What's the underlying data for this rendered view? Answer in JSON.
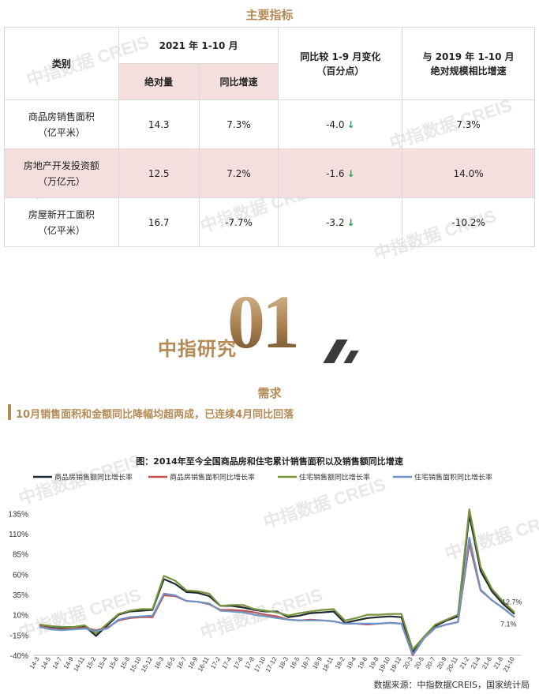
{
  "header": {
    "title": "主要指标"
  },
  "table": {
    "category_header": "类别",
    "period_header": "2021 年 1-10 月",
    "abs_header": "绝对量",
    "yoy_header": "同比增速",
    "change_header_line1": "同比较 1-9 月变化",
    "change_header_line2": "（百分点）",
    "vs2019_header_line1": "与 2019 年 1-10 月",
    "vs2019_header_line2": "绝对规模相比增速",
    "rows": [
      {
        "name_line1": "商品房销售面积",
        "name_line2": "（亿平米）",
        "abs": "14.3",
        "yoy": "7.3%",
        "change": "-4.0",
        "vs2019": "7.3%"
      },
      {
        "name_line1": "房地产开发投资额",
        "name_line2": "（万亿元）",
        "abs": "12.5",
        "yoy": "7.2%",
        "change": "-1.6",
        "vs2019": "14.0%"
      },
      {
        "name_line1": "房屋新开工面积",
        "name_line2": "（亿平米）",
        "abs": "16.7",
        "yoy": "-7.7%",
        "change": "-3.2",
        "vs2019": "-10.2%"
      }
    ],
    "down_arrow": "↓"
  },
  "logo": {
    "text": "中指研究",
    "number": "01"
  },
  "section": {
    "title": "需求"
  },
  "subtitle": "10月销售面积和金额同比降幅均超两成，已连续4月同比回落",
  "watermark": "中指数据 CREIS",
  "colors": {
    "accent": "#b58a54",
    "pink": "#f4dede",
    "arrow": "#2e9e4f"
  },
  "chart_data": {
    "type": "line",
    "title": "图：2014年至今全国商品房和住宅累计销售面积以及销售额同比增速",
    "ylim": [
      -40,
      145
    ],
    "yticks": [
      -40,
      -15,
      10,
      35,
      60,
      85,
      110,
      135
    ],
    "ytick_labels": [
      "-40%",
      "-15%",
      "10%",
      "35%",
      "60%",
      "85%",
      "110%",
      "135%"
    ],
    "x": [
      "14-3",
      "14-5",
      "14-7",
      "14-9",
      "14-11",
      "15-2",
      "15-4",
      "15-6",
      "15-8",
      "15-10",
      "15-12",
      "16-3",
      "16-5",
      "16-7",
      "16-9",
      "16-11",
      "17-2",
      "17-4",
      "17-6",
      "17-8",
      "17-10",
      "17-12",
      "18-3",
      "18-5",
      "18-7",
      "18-9",
      "18-11",
      "19-2",
      "19-4",
      "19-6",
      "19-8",
      "19-10",
      "19-12",
      "20-3",
      "20-5",
      "20-7",
      "20-9",
      "20-11",
      "21-2",
      "21-4",
      "21-6",
      "21-8",
      "21-10"
    ],
    "series": [
      {
        "name": "商品房销售额同比增长率",
        "color": "#1f2a33",
        "values": [
          -3,
          -6,
          -7,
          -6,
          -4,
          -16,
          -3,
          10,
          14,
          15,
          16,
          54,
          48,
          38,
          37,
          33,
          21,
          21,
          19,
          16,
          14,
          14,
          7,
          9,
          12,
          13,
          14,
          0,
          3,
          6,
          7,
          8,
          7,
          -36,
          -19,
          -4,
          3,
          8,
          133,
          64,
          39,
          23,
          11
        ]
      },
      {
        "name": "商品房销售面积同比增长率",
        "color": "#c0504d",
        "values": [
          -4,
          -7,
          -8,
          -7,
          -6,
          -9,
          -6,
          3,
          6,
          7,
          7,
          34,
          33,
          27,
          26,
          23,
          16,
          16,
          15,
          13,
          10,
          8,
          4,
          3,
          4,
          3,
          2,
          -1,
          -1,
          -2,
          -1,
          0,
          -1,
          -40,
          -19,
          -6,
          -2,
          1,
          98,
          40,
          28,
          18,
          7
        ]
      },
      {
        "name": "住宅销售额同比增长率",
        "color": "#77933c",
        "values": [
          -2,
          -4,
          -5,
          -5,
          -3,
          -13,
          -1,
          11,
          15,
          17,
          17,
          58,
          52,
          40,
          39,
          36,
          21,
          22,
          22,
          17,
          15,
          13,
          9,
          12,
          14,
          16,
          17,
          3,
          6,
          10,
          10,
          11,
          11,
          -33,
          -17,
          -2,
          4,
          10,
          140,
          69,
          42,
          26,
          13
        ]
      },
      {
        "name": "住宅销售面积同比增长率",
        "color": "#6e93c7",
        "values": [
          -5,
          -8,
          -9,
          -8,
          -7,
          -10,
          -7,
          4,
          7,
          8,
          9,
          36,
          34,
          27,
          26,
          24,
          15,
          14,
          13,
          10,
          8,
          6,
          4,
          3,
          3,
          3,
          2,
          -1,
          -1,
          -1,
          -1,
          0,
          -1,
          -39,
          -19,
          -6,
          -2,
          1,
          105,
          41,
          28,
          18,
          7
        ]
      }
    ],
    "annotations": [
      {
        "text": "12.7%"
      },
      {
        "text": "7.1%"
      }
    ]
  },
  "source": "数据来源：中指数据CREIS，国家统计局"
}
